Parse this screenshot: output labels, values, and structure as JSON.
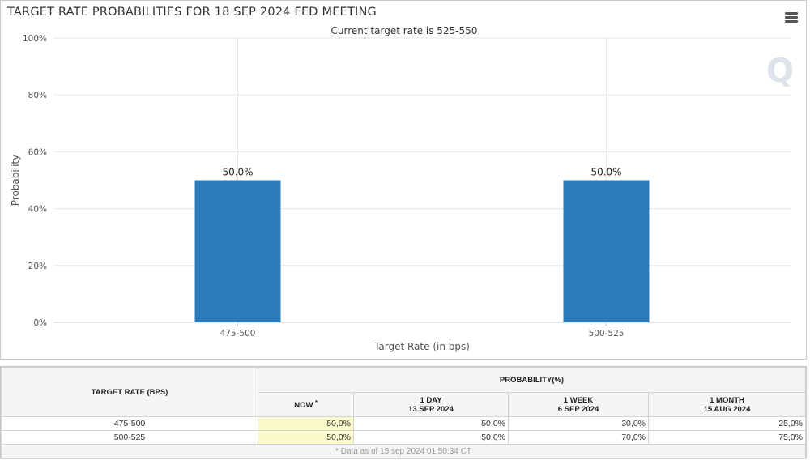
{
  "chart_data": {
    "type": "bar",
    "title": "TARGET RATE PROBABILITIES FOR 18 SEP 2024 FED MEETING",
    "subtitle": "Current target rate is 525-550",
    "xlabel": "Target Rate (in bps)",
    "ylabel": "Probability",
    "categories": [
      "475-500",
      "500-525"
    ],
    "values": [
      50.0,
      50.0
    ],
    "data_labels": [
      "50.0%",
      "50.0%"
    ],
    "ylim": [
      0,
      100
    ],
    "yticks": [
      "0%",
      "20%",
      "40%",
      "60%",
      "80%",
      "100%"
    ],
    "grid": true,
    "bar_color": "#2b7bb9"
  },
  "watermark_text": "Q",
  "table": {
    "col_rate_header": "TARGET RATE (BPS)",
    "prob_header": "PROBABILITY(%)",
    "periods": [
      {
        "label": "NOW",
        "marker": "*",
        "date": ""
      },
      {
        "label": "1 DAY",
        "date": "13 SEP 2024"
      },
      {
        "label": "1 WEEK",
        "date": "6 SEP 2024"
      },
      {
        "label": "1 MONTH",
        "date": "15 AUG 2024"
      }
    ],
    "rows": [
      {
        "rate": "475-500",
        "values": [
          "50,0%",
          "50,0%",
          "30,0%",
          "25,0%"
        ]
      },
      {
        "rate": "500-525",
        "values": [
          "50,0%",
          "50,0%",
          "70,0%",
          "75,0%"
        ]
      }
    ],
    "footnote": "* Data as of 15 sep 2024 01:50:34 CT"
  }
}
